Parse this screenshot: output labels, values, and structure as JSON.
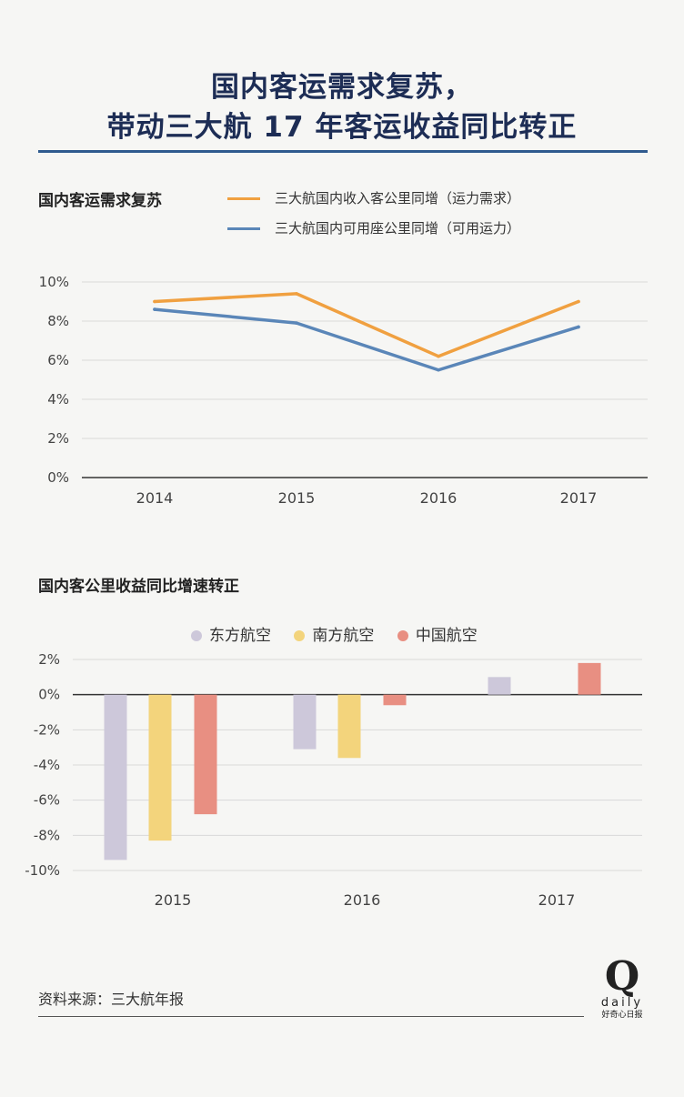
{
  "title": {
    "line1": "国内客运需求复苏，",
    "line2": "带动三大航 17 年客运收益同比转正"
  },
  "source": "资料来源：三大航年报",
  "logo": {
    "q": "Q",
    "daily": "daily",
    "cn": "好奇心日报"
  },
  "colors": {
    "orange": "#f0a040",
    "blue": "#5a86b8",
    "eastern": "#cdc8da",
    "southern": "#f3d47c",
    "air_china": "#e88f82",
    "grid": "#d9d9d9",
    "axis": "#333333"
  },
  "chart_data": [
    {
      "type": "line",
      "title": "国内客运需求复苏",
      "categories": [
        "2014",
        "2015",
        "2016",
        "2017"
      ],
      "series": [
        {
          "name": "三大航国内收入客公里同增（运力需求）",
          "color": "#f0a040",
          "values": [
            9.0,
            9.4,
            6.2,
            9.0
          ]
        },
        {
          "name": "三大航国内可用座公里同增（可用运力）",
          "color": "#5a86b8",
          "values": [
            8.6,
            7.9,
            5.5,
            7.7
          ]
        }
      ],
      "ylim": [
        0,
        10
      ],
      "yticks": [
        0,
        2,
        4,
        6,
        8,
        10
      ],
      "ytick_labels": [
        "0%",
        "2%",
        "4%",
        "6%",
        "8%",
        "10%"
      ],
      "grid": true,
      "legend": "top"
    },
    {
      "type": "bar",
      "title": "国内客公里收益同比增速转正",
      "categories": [
        "2015",
        "2016",
        "2017"
      ],
      "series": [
        {
          "name": "东方航空",
          "color": "#cdc8da",
          "values": [
            -9.4,
            -3.1,
            1.0
          ]
        },
        {
          "name": "南方航空",
          "color": "#f3d47c",
          "values": [
            -8.3,
            -3.6,
            null
          ]
        },
        {
          "name": "中国航空",
          "color": "#e88f82",
          "values": [
            -6.8,
            -0.6,
            1.8
          ]
        }
      ],
      "ylim": [
        -10,
        2
      ],
      "yticks": [
        2,
        0,
        -2,
        -4,
        -6,
        -8,
        -10
      ],
      "ytick_labels": [
        "2%",
        "0%",
        "-2%",
        "-4%",
        "-6%",
        "-8%",
        "-10%"
      ],
      "grid": true,
      "legend": "top"
    }
  ]
}
